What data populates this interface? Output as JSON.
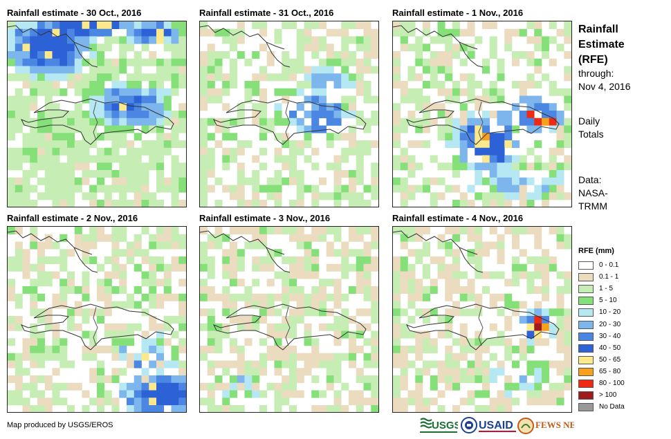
{
  "panels": [
    {
      "title": "Rainfall estimate - 30 Oct., 2016"
    },
    {
      "title": "Rainfall estimate - 31 Oct., 2016"
    },
    {
      "title": "Rainfall estimate - 1 Nov., 2016"
    },
    {
      "title": "Rainfall estimate - 2 Nov., 2016"
    },
    {
      "title": "Rainfall estimate - 3 Nov., 2016"
    },
    {
      "title": "Rainfall estimate - 4 Nov., 2016"
    }
  ],
  "sidebar": {
    "title_lines": [
      "Rainfall",
      "Estimate",
      "(RFE)"
    ],
    "through_label": "through:",
    "through_date": "Nov 4, 2016",
    "totals_lines": [
      "Daily",
      "Totals"
    ],
    "data_lines": [
      "Data:",
      "NASA-",
      "TRMM"
    ]
  },
  "legend": {
    "title": "RFE (mm)",
    "items": [
      {
        "label": "0 - 0.1",
        "color": "#ffffff"
      },
      {
        "label": "0.1 - 1",
        "color": "#ebdcc0"
      },
      {
        "label": "1 - 5",
        "color": "#c6eeb4"
      },
      {
        "label": "5 - 10",
        "color": "#86e07a"
      },
      {
        "label": "10 - 20",
        "color": "#b6e8f4"
      },
      {
        "label": "20 - 30",
        "color": "#7cb6ec"
      },
      {
        "label": "30 - 40",
        "color": "#4a86e2"
      },
      {
        "label": "40 - 50",
        "color": "#2d62d6"
      },
      {
        "label": "50 - 65",
        "color": "#fbe98c"
      },
      {
        "label": "65 - 80",
        "color": "#f9a01a"
      },
      {
        "label": "80 - 100",
        "color": "#ef2a12"
      },
      {
        "label": "> 100",
        "color": "#a01c1c"
      },
      {
        "label": "No Data",
        "color": "#999999"
      }
    ]
  },
  "footer": {
    "credit": "Map produced by USGS/EROS",
    "logos": [
      "USGS",
      "USAID",
      "FEWS NET"
    ]
  }
}
